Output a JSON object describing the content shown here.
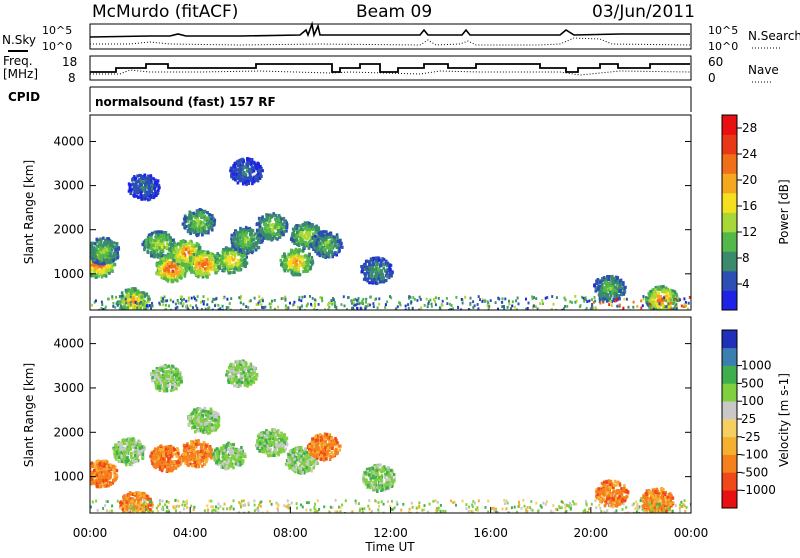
{
  "header": {
    "station": "McMurdo (fitACF)",
    "beam": "Beam 09",
    "date": "03/Jun/2011"
  },
  "noise_panel": {
    "left_label": "N.Sky",
    "right_label": "N.Search",
    "left_ticks": [
      "10^5",
      "10^0"
    ],
    "right_ticks": [
      "10^5",
      "10^0"
    ]
  },
  "freq_panel": {
    "left_label_line1": "Freq.",
    "left_label_line2": "[MHz]",
    "left_ticks": [
      "18",
      "8"
    ],
    "right_ticks": [
      "60",
      "0"
    ],
    "right_label": "Nave"
  },
  "cpid": {
    "label": "CPID",
    "value": "normalsound (fast) 157 RF"
  },
  "colors": {
    "power_scale": [
      "#1e22e6",
      "#2b4fb4",
      "#3b8a6e",
      "#52b848",
      "#a8d838",
      "#f5e020",
      "#f5a81e",
      "#f07018",
      "#e83818",
      "#e81010"
    ],
    "velocity_scale": [
      "#e81010",
      "#f04818",
      "#f5801e",
      "#f5b030",
      "#f5d060",
      "#c8c8c8",
      "#7fcf3f",
      "#3fae4f",
      "#3a7fb0",
      "#2030b8"
    ]
  },
  "chart_data": [
    {
      "type": "heatmap",
      "panel": "power",
      "ylabel": "Slant Range [km]",
      "yticks": [
        "1000",
        "2000",
        "3000",
        "4000"
      ],
      "ylim": [
        180,
        4600
      ],
      "xlim": [
        0,
        24
      ],
      "colorbar_label": "Power [dB]",
      "colorbar_ticks": [
        "4",
        "8",
        "12",
        "16",
        "20",
        "24",
        "28"
      ],
      "colorbar_range": [
        0,
        30
      ],
      "blobs": [
        {
          "t": 0.3,
          "r": 1250,
          "v": 26
        },
        {
          "t": 0.5,
          "r": 1550,
          "v": 14
        },
        {
          "t": 1.7,
          "r": 400,
          "v": 22
        },
        {
          "t": 2.7,
          "r": 1700,
          "v": 16
        },
        {
          "t": 3.2,
          "r": 1150,
          "v": 27
        },
        {
          "t": 3.8,
          "r": 1500,
          "v": 24
        },
        {
          "t": 4.5,
          "r": 1250,
          "v": 26
        },
        {
          "t": 4.3,
          "r": 2200,
          "v": 14
        },
        {
          "t": 5.6,
          "r": 1350,
          "v": 20
        },
        {
          "t": 6.2,
          "r": 1800,
          "v": 14
        },
        {
          "t": 7.2,
          "r": 2100,
          "v": 15
        },
        {
          "t": 8.2,
          "r": 1300,
          "v": 22
        },
        {
          "t": 8.6,
          "r": 1900,
          "v": 16
        },
        {
          "t": 9.4,
          "r": 1700,
          "v": 12
        },
        {
          "t": 6.2,
          "r": 3350,
          "v": 7
        },
        {
          "t": 2.1,
          "r": 3000,
          "v": 7
        },
        {
          "t": 11.4,
          "r": 1100,
          "v": 10
        },
        {
          "t": 20.7,
          "r": 700,
          "v": 12
        },
        {
          "t": 22.8,
          "r": 450,
          "v": 24
        }
      ]
    },
    {
      "type": "heatmap",
      "panel": "velocity",
      "ylabel": "Slant Range [km]",
      "yticks": [
        "1000",
        "2000",
        "3000",
        "4000"
      ],
      "ylim": [
        180,
        4600
      ],
      "xlim": [
        0,
        24
      ],
      "xticks": [
        "00:00",
        "04:00",
        "08:00",
        "12:00",
        "16:00",
        "20:00",
        "00:00"
      ],
      "xlabel": "Time UT",
      "colorbar_label": "Velocity [m s-1]",
      "colorbar_ticks": [
        "-1000",
        "-500",
        "-100",
        "-25",
        "25",
        "100",
        "500",
        "1000"
      ],
      "blobs": [
        {
          "t": 0.4,
          "r": 1100,
          "v": -100
        },
        {
          "t": 1.5,
          "r": 1600,
          "v": 100
        },
        {
          "t": 3.0,
          "r": 1450,
          "v": -100
        },
        {
          "t": 4.2,
          "r": 1550,
          "v": -100
        },
        {
          "t": 5.5,
          "r": 1500,
          "v": 100
        },
        {
          "t": 7.2,
          "r": 1800,
          "v": 100
        },
        {
          "t": 8.4,
          "r": 1400,
          "v": 100
        },
        {
          "t": 9.3,
          "r": 1700,
          "v": -100
        },
        {
          "t": 4.5,
          "r": 2300,
          "v": 100
        },
        {
          "t": 6.0,
          "r": 3350,
          "v": 25
        },
        {
          "t": 3.0,
          "r": 3250,
          "v": 25
        },
        {
          "t": 1.8,
          "r": 400,
          "v": -100
        },
        {
          "t": 11.5,
          "r": 1000,
          "v": 100
        },
        {
          "t": 20.8,
          "r": 650,
          "v": -100
        },
        {
          "t": 22.6,
          "r": 480,
          "v": -100
        }
      ]
    }
  ],
  "ylabel_left": "Slant Range [km]",
  "xlabel": "Time UT"
}
